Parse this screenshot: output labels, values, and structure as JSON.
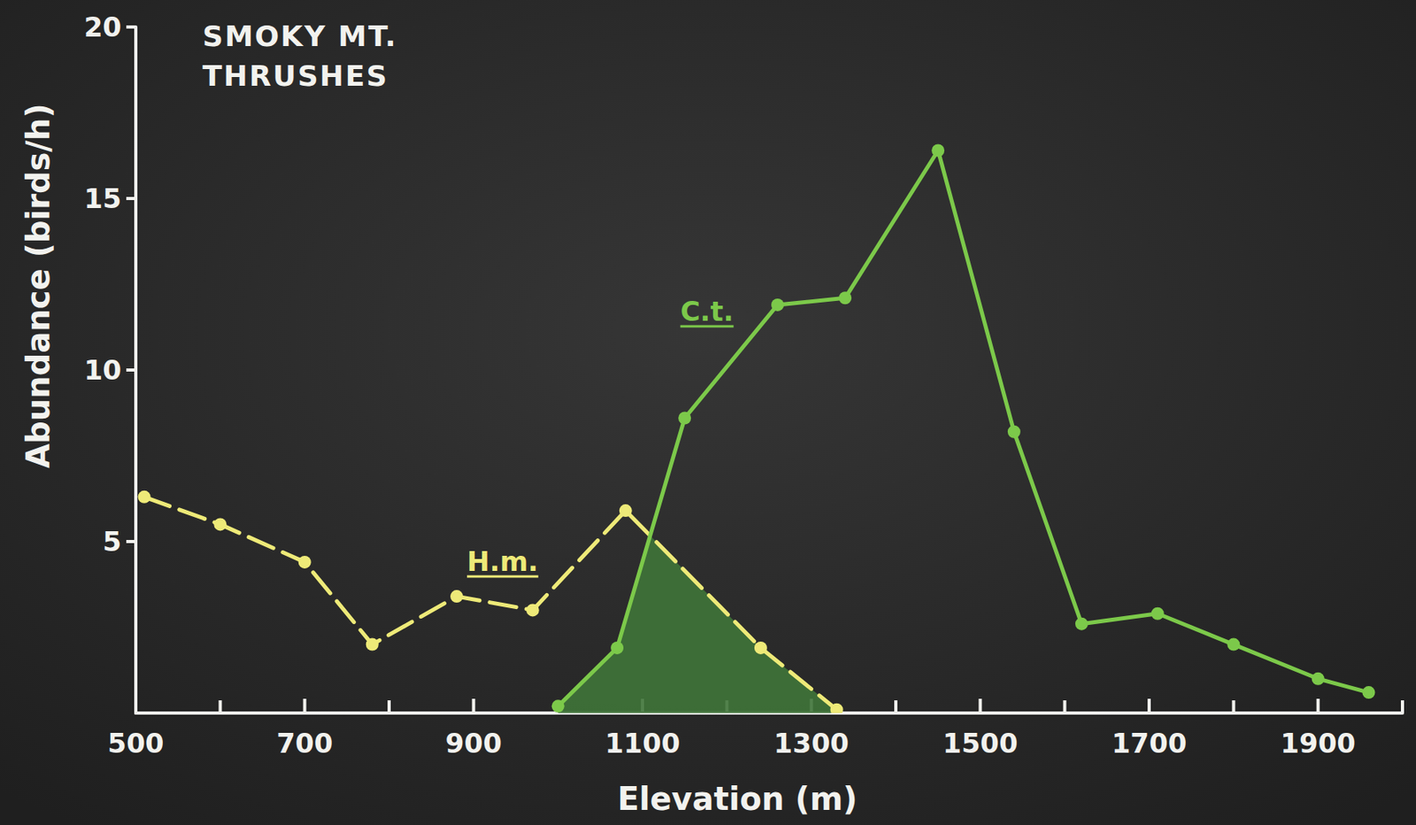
{
  "chart_data": {
    "type": "line",
    "title": "SMOKY MT. THRUSHES",
    "x_label": "Elevation (m)",
    "y_label": "Abundance (birds/h)",
    "xlim": [
      500,
      2000
    ],
    "xticks": [
      500,
      700,
      900,
      1100,
      1300,
      1500,
      1700,
      1900
    ],
    "ylim": [
      0,
      20
    ],
    "yticks": [
      5,
      10,
      15,
      20
    ],
    "grid": false,
    "series": [
      {
        "name": "H.m.",
        "color": "#eeea78",
        "line_style": "dashed",
        "marker": "circle",
        "x": [
          510,
          600,
          700,
          780,
          880,
          970,
          1080,
          1240,
          1330
        ],
        "values": [
          6.3,
          5.5,
          4.4,
          2.0,
          3.4,
          3.0,
          5.9,
          1.9,
          0.1
        ]
      },
      {
        "name": "C.t.",
        "color": "#7cc94a",
        "line_style": "solid",
        "marker": "circle",
        "x": [
          1000,
          1070,
          1150,
          1260,
          1340,
          1450,
          1540,
          1620,
          1710,
          1800,
          1900,
          1960
        ],
        "values": [
          0.2,
          1.9,
          8.6,
          11.9,
          12.1,
          16.4,
          8.2,
          2.6,
          2.9,
          2.0,
          1.0,
          0.6
        ]
      }
    ]
  }
}
